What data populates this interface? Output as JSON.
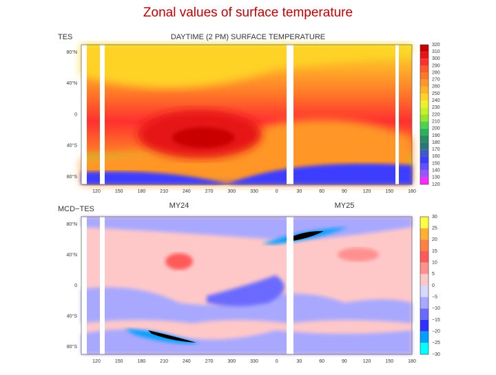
{
  "title": "Zonal values of surface temperature",
  "panels": [
    {
      "label": "TES",
      "heading": "DAYTIME (2 PM) SURFACE TEMPERATURE",
      "ylabels": [
        "80°N",
        "40°N",
        "0",
        "40°S",
        "80°S"
      ],
      "xlabels": [
        "120",
        "150",
        "180",
        "210",
        "240",
        "270",
        "300",
        "330",
        "0",
        "30",
        "60",
        "90",
        "120",
        "150",
        "180"
      ],
      "colorbar_labels": [
        "320",
        "310",
        "300",
        "290",
        "280",
        "270",
        "260",
        "250",
        "240",
        "230",
        "220",
        "210",
        "200",
        "190",
        "180",
        "170",
        "160",
        "150",
        "140",
        "130",
        "120"
      ],
      "colorbar_colors": [
        "#c80000",
        "#e61414",
        "#ff3030",
        "#ff5a28",
        "#ff7828",
        "#ff9628",
        "#ffb428",
        "#ffd228",
        "#f0f028",
        "#c8f028",
        "#96e628",
        "#50d250",
        "#28b45a",
        "#288c64",
        "#287878",
        "#3c5ac8",
        "#3c3cff",
        "#6450ff",
        "#a050ff",
        "#ff28ff"
      ]
    },
    {
      "label": "MCD−TES",
      "subheadings": [
        "MY24",
        "MY25"
      ],
      "ylabels": [
        "80°N",
        "40°N",
        "0",
        "40°S",
        "80°S"
      ],
      "xlabels": [
        "120",
        "150",
        "180",
        "210",
        "240",
        "270",
        "300",
        "330",
        "0",
        "30",
        "60",
        "90",
        "120",
        "150",
        "180"
      ],
      "colorbar_labels": [
        "30",
        "25",
        "20",
        "15",
        "10",
        "5",
        "0",
        "−5",
        "−10",
        "−15",
        "−20",
        "−25",
        "−30"
      ],
      "colorbar_colors": [
        "#ffff40",
        "#ffb030",
        "#ff8040",
        "#ff5a5a",
        "#ff9090",
        "#ffc8c8",
        "#d8d8ff",
        "#a8a8ff",
        "#6a6aff",
        "#3030ff",
        "#00a0ff",
        "#00ffff"
      ]
    }
  ]
}
